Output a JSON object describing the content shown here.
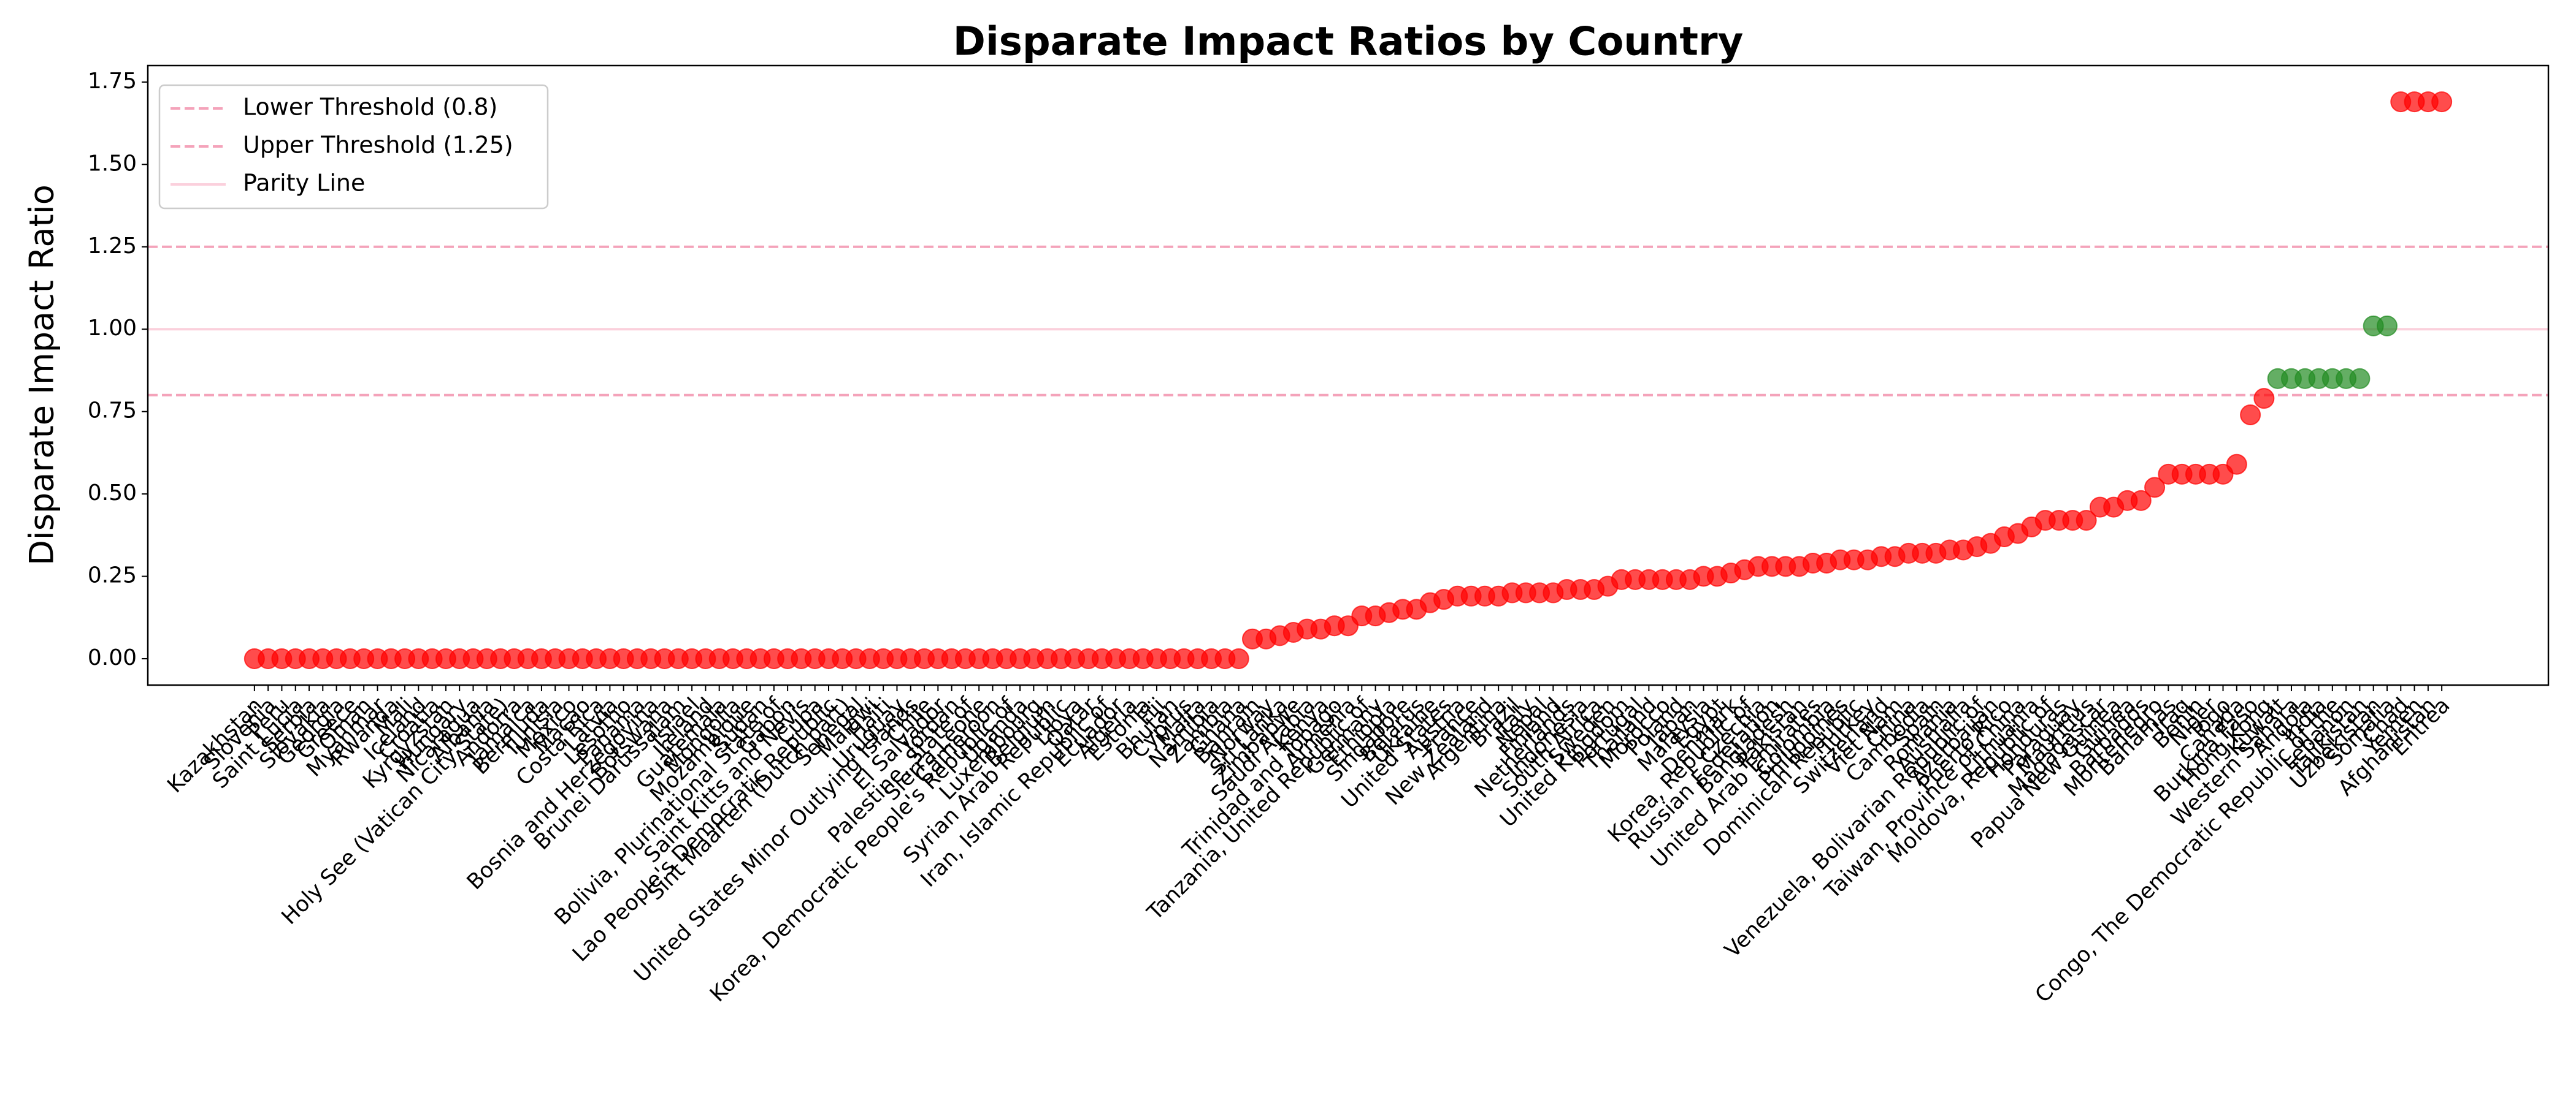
{
  "chart_data": {
    "type": "scatter",
    "title": "Disparate Impact Ratios by Country",
    "y_label": "Disparate Impact Ratio",
    "categories": [
      "Kazakhstan",
      "Slovenia",
      "Peru",
      "Saint Lucia",
      "Serbia",
      "Slovakia",
      "Georgia",
      "Greece",
      "Oman",
      "Myanmar",
      "Rwanda",
      "Mali",
      "Iceland",
      "Croatia",
      "Kyrgyzstan",
      "Hungary",
      "Nicaragua",
      "Albania",
      "Holy See (Vatican City State)",
      "Andorra",
      "Jamaica",
      "Bermuda",
      "Tunisia",
      "Mexico",
      "Macao",
      "Costa Rica",
      "Latvia",
      "Lesotho",
      "Panama",
      "Bosnia and Herzegovina",
      "Botswana",
      "Brunei Darussalam",
      "Israel",
      "Ireland",
      "Guatemala",
      "Mongolia",
      "Mozambique",
      "Sudan",
      "Bolivia, Plurinational State of",
      "Gabon",
      "Saint Kitts and Nevis",
      "Cuba",
      "Lao People's Democratic Republic",
      "Sint Maarten (Dutch part)",
      "Senegal",
      "Malawi",
      "Haiti",
      "Uruguay",
      "United States Minor Outlying Islands",
      "Chile",
      "El Salvador",
      "Jordan",
      "Palestine, State of",
      "Sierra Leone",
      "Cameroon",
      "Korea, Democratic People's Republic of",
      "Uganda",
      "Luxembourg",
      "Belgium",
      "Syrian Arab Republic",
      "Libya",
      "Qatar",
      "Iran, Islamic Republic of",
      "Ecuador",
      "Algeria",
      "Estonia",
      "Fiji",
      "Bhutan",
      "Cyprus",
      "Malta",
      "Namibia",
      "Zambia",
      "Ghana",
      "Bahrain",
      "Norway",
      "Sri Lanka",
      "Zimbabwe",
      "Saudi Arabia",
      "Kenya",
      "Trinidad and Tobago",
      "Armenia",
      "Tanzania, United Republic of",
      "Germany",
      "Ethiopia",
      "Singapore",
      "Belarus",
      "Ukraine",
      "United States",
      "Austria",
      "France",
      "New Zealand",
      "Argentina",
      "Brazil",
      "Italy",
      "Nepal",
      "Finland",
      "Netherlands",
      "Indonesia",
      "South Africa",
      "Sweden",
      "United Kingdom",
      "Portugal",
      "Thailand",
      "Morocco",
      "Poland",
      "Japan",
      "Malaysia",
      "Egypt",
      "Denmark",
      "Korea, Republic of",
      "Czechia",
      "Russian Federation",
      "Bangladesh",
      "Pakistan",
      "United Arab Emirates",
      "Colombia",
      "Philippines",
      "Dominican Republic",
      "Turkey",
      "Switzerland",
      "Viet Nam",
      "China",
      "Cambodia",
      "Spain",
      "Romania",
      "Australia",
      "Venezuela, Bolivarian Republic of",
      "Azerbaijan",
      "Puerto Rico",
      "Taiwan, Province of China",
      "Lithuania",
      "Moldova, Republic of",
      "Honduras",
      "Paraguay",
      "Mauritius",
      "Madagascar",
      "Papua New Guinea",
      "Guinea",
      "Barbados",
      "Montenegro",
      "Bahamas",
      "Iraq",
      "Benin",
      "Niger",
      "Togo",
      "Canada",
      "Burkina Faso",
      "Hong Kong",
      "Kuwait",
      "Western Sahara",
      "Angola",
      "India",
      "Congo, The Democratic Republic of the",
      "Lebanon",
      "Tajikistan",
      "Uzbekistan",
      "Somalia",
      "Chad",
      "Yemen",
      "Afghanistan",
      "Eritrea"
    ],
    "values": [
      0,
      0,
      0,
      0,
      0,
      0,
      0,
      0,
      0,
      0,
      0,
      0,
      0,
      0,
      0,
      0,
      0,
      0,
      0,
      0,
      0,
      0,
      0,
      0,
      0,
      0,
      0,
      0,
      0,
      0,
      0,
      0,
      0,
      0,
      0,
      0,
      0,
      0,
      0,
      0,
      0,
      0,
      0,
      0,
      0,
      0,
      0,
      0,
      0,
      0,
      0,
      0,
      0,
      0,
      0,
      0,
      0,
      0,
      0,
      0,
      0,
      0,
      0,
      0,
      0,
      0,
      0,
      0,
      0,
      0,
      0,
      0,
      0,
      0.06,
      0.06,
      0.07,
      0.08,
      0.09,
      0.09,
      0.1,
      0.1,
      0.13,
      0.13,
      0.14,
      0.15,
      0.15,
      0.17,
      0.18,
      0.19,
      0.19,
      0.19,
      0.19,
      0.2,
      0.2,
      0.2,
      0.2,
      0.21,
      0.21,
      0.21,
      0.22,
      0.24,
      0.24,
      0.24,
      0.24,
      0.24,
      0.24,
      0.25,
      0.25,
      0.26,
      0.27,
      0.28,
      0.28,
      0.28,
      0.28,
      0.29,
      0.29,
      0.3,
      0.3,
      0.3,
      0.31,
      0.31,
      0.32,
      0.32,
      0.32,
      0.33,
      0.33,
      0.34,
      0.35,
      0.37,
      0.38,
      0.4,
      0.42,
      0.42,
      0.42,
      0.42,
      0.46,
      0.46,
      0.48,
      0.48,
      0.52,
      0.56,
      0.56,
      0.56,
      0.56,
      0.56,
      0.59,
      0.74,
      0.79,
      0.85,
      0.85,
      0.85,
      0.85,
      0.85,
      0.85,
      0.85,
      1.01,
      1.01,
      1.69,
      1.69,
      1.69,
      1.69
    ],
    "color_in_band": "#228b22",
    "color_out_band": "#ff0000",
    "reference_lines": [
      {
        "name": "Lower Threshold (0.8)",
        "value": 0.8,
        "color": "#f4a3ba",
        "dash": true
      },
      {
        "name": "Upper Threshold (1.25)",
        "value": 1.25,
        "color": "#f4a3ba",
        "dash": true
      },
      {
        "name": "Parity Line",
        "value": 1.0,
        "color": "#fbd0dc",
        "dash": false
      }
    ],
    "ylim": [
      -0.08,
      1.8
    ],
    "yticks": [
      {
        "value": 0,
        "label": "0.00"
      },
      {
        "value": 0.25,
        "label": "0.25"
      },
      {
        "value": 0.5,
        "label": "0.50"
      },
      {
        "value": 0.75,
        "label": "0.75"
      },
      {
        "value": 1,
        "label": "1.00"
      },
      {
        "value": 1.25,
        "label": "1.25"
      },
      {
        "value": 1.5,
        "label": "1.50"
      },
      {
        "value": 1.75,
        "label": "1.75"
      }
    ],
    "legend": "upper left"
  }
}
